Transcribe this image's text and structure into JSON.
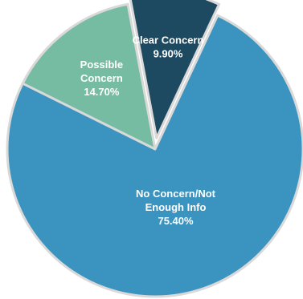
{
  "chart_data": {
    "type": "pie",
    "title": "",
    "slices": [
      {
        "label_lines": [
          "No Concern/Not",
          "Enough Info"
        ],
        "value_label": "75.40%",
        "value": 75.4,
        "color": "#3a94bf",
        "exploded": false
      },
      {
        "label_lines": [
          "Possible",
          "Concern"
        ],
        "value_label": "14.70%",
        "value": 14.7,
        "color": "#76bca2",
        "exploded": false
      },
      {
        "label_lines": [
          "Clear Concern"
        ],
        "value_label": "9.90%",
        "value": 9.9,
        "color": "#1d4a60",
        "exploded": true
      }
    ],
    "slice_border_color": "#d9d9d9",
    "label_color": "#ffffff"
  }
}
